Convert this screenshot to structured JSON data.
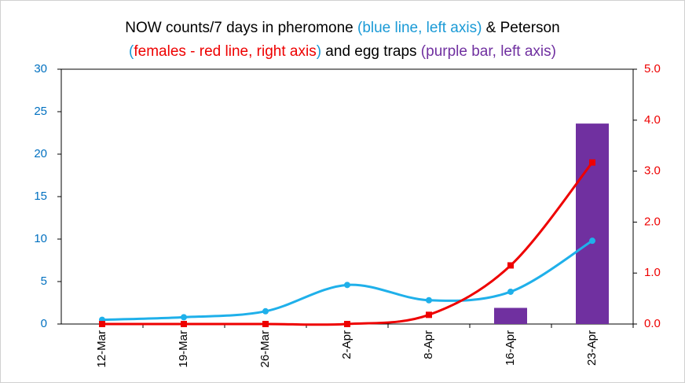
{
  "chart_data": {
    "type": "line",
    "title": [
      [
        {
          "text": "NOW counts/7 days in pheromone ",
          "color": "#000000"
        },
        {
          "text": "(blue line, left axis)",
          "color": "#1a9ad6"
        },
        {
          "text": " & Peterson",
          "color": "#000000"
        }
      ],
      [
        {
          "text": "(",
          "color": "#1a9ad6"
        },
        {
          "text": "females - red line, right axis",
          "color": "#ee0000"
        },
        {
          "text": ")",
          "color": "#1a9ad6"
        },
        {
          "text": " and egg traps ",
          "color": "#000000"
        },
        {
          "text": "(purple bar, left axis)",
          "color": "#7030a0"
        }
      ]
    ],
    "categories": [
      "12-Mar",
      "19-Mar",
      "26-Mar",
      "2-Apr",
      "8-Apr",
      "16-Apr",
      "23-Apr"
    ],
    "series": [
      {
        "name": "egg traps",
        "type": "bar",
        "color": "#7030a0",
        "values": [
          null,
          null,
          null,
          null,
          null,
          1.9,
          23.6
        ]
      },
      {
        "name": "pheromone",
        "type": "line",
        "marker": "circle",
        "color": "#1fb0ea",
        "values": [
          0.5,
          0.8,
          1.5,
          4.6,
          2.8,
          3.8,
          9.8
        ]
      },
      {
        "name": "Peterson females",
        "type": "line",
        "marker": "square",
        "axis": "y2",
        "color": "#ee0000",
        "values": [
          0,
          0,
          0,
          0,
          0.18,
          1.15,
          3.17
        ]
      }
    ],
    "ylim": [
      0,
      30
    ],
    "yticks": [
      0,
      5,
      10,
      15,
      20,
      25,
      30
    ],
    "ytick_color": "#0070c0",
    "y2lim": [
      0,
      5
    ],
    "y2ticks": [
      {
        "value": 0,
        "label": "0.0"
      },
      {
        "value": 1,
        "label": "1.0"
      },
      {
        "value": 2,
        "label": "2.0"
      },
      {
        "value": 3,
        "label": "3.0"
      },
      {
        "value": 4,
        "label": "4.0"
      },
      {
        "value": 5,
        "label": "5.0"
      }
    ],
    "y2tick_color": "#ee0000",
    "grid": false
  }
}
